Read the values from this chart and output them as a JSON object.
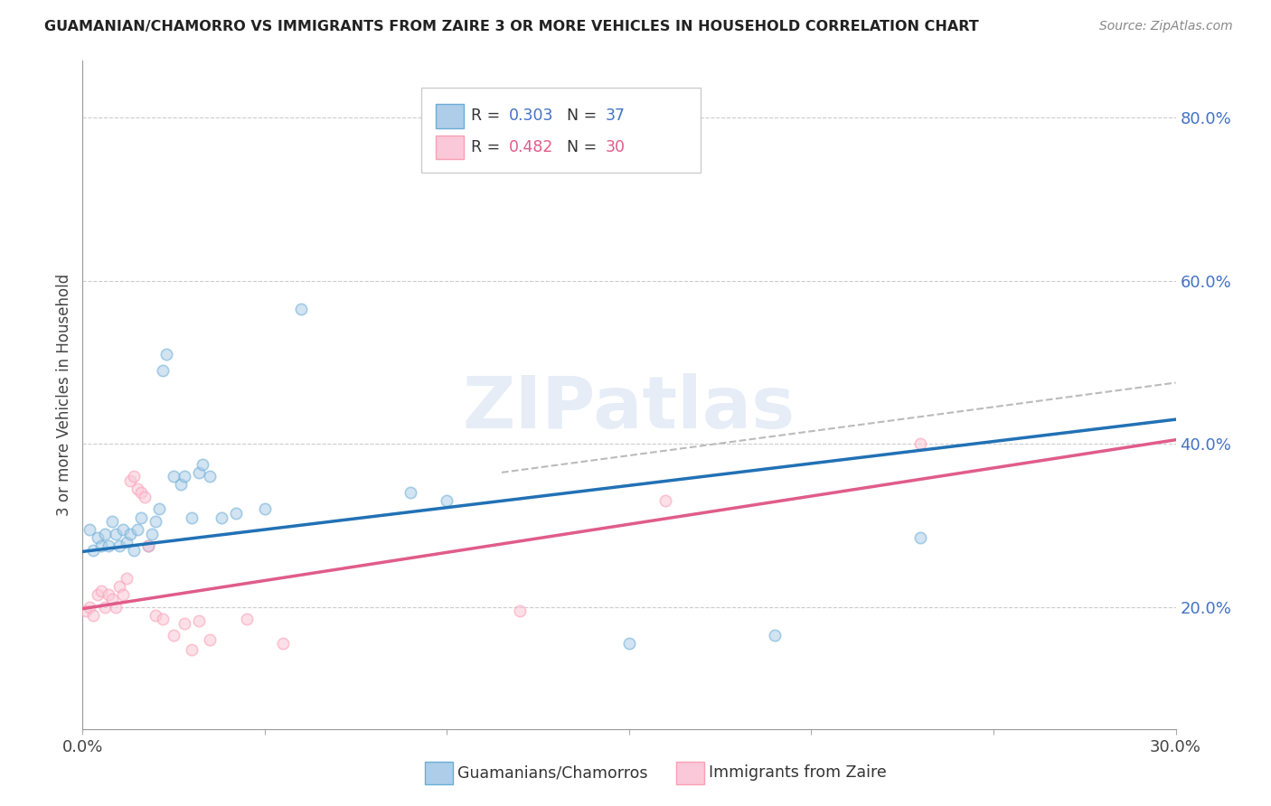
{
  "title": "GUAMANIAN/CHAMORRO VS IMMIGRANTS FROM ZAIRE 3 OR MORE VEHICLES IN HOUSEHOLD CORRELATION CHART",
  "source": "Source: ZipAtlas.com",
  "ylabel": "3 or more Vehicles in Household",
  "xlim": [
    0.0,
    0.3
  ],
  "ylim": [
    0.05,
    0.87
  ],
  "xticks": [
    0.0,
    0.05,
    0.1,
    0.15,
    0.2,
    0.25,
    0.3
  ],
  "xticklabels": [
    "0.0%",
    "",
    "",
    "",
    "",
    "",
    "30.0%"
  ],
  "yticks_right": [
    0.2,
    0.4,
    0.6,
    0.8
  ],
  "ytick_right_labels": [
    "20.0%",
    "40.0%",
    "60.0%",
    "80.0%"
  ],
  "blue_face_color": "#aecde8",
  "blue_edge_color": "#6baed6",
  "pink_face_color": "#fac8d8",
  "pink_edge_color": "#fa9fb5",
  "blue_line_color": "#2171b5",
  "pink_line_color": "#e05c8a",
  "legend_R1": "R = 0.303",
  "legend_N1": "N = 37",
  "legend_R2": "R = 0.482",
  "legend_N2": "N = 30",
  "legend_label1": "Guamanians/Chamorros",
  "legend_label2": "Immigrants from Zaire",
  "watermark": "ZIPatlas",
  "blue_points_x": [
    0.002,
    0.003,
    0.004,
    0.005,
    0.006,
    0.007,
    0.008,
    0.009,
    0.01,
    0.011,
    0.012,
    0.013,
    0.014,
    0.015,
    0.016,
    0.018,
    0.019,
    0.02,
    0.021,
    0.022,
    0.023,
    0.025,
    0.027,
    0.028,
    0.03,
    0.032,
    0.033,
    0.035,
    0.038,
    0.042,
    0.05,
    0.06,
    0.09,
    0.1,
    0.15,
    0.19,
    0.23
  ],
  "blue_points_y": [
    0.295,
    0.27,
    0.285,
    0.275,
    0.29,
    0.275,
    0.305,
    0.29,
    0.275,
    0.295,
    0.28,
    0.29,
    0.27,
    0.295,
    0.31,
    0.275,
    0.29,
    0.305,
    0.32,
    0.49,
    0.51,
    0.36,
    0.35,
    0.36,
    0.31,
    0.365,
    0.375,
    0.36,
    0.31,
    0.315,
    0.32,
    0.565,
    0.34,
    0.33,
    0.155,
    0.165,
    0.285
  ],
  "pink_points_x": [
    0.001,
    0.002,
    0.003,
    0.004,
    0.005,
    0.006,
    0.007,
    0.008,
    0.009,
    0.01,
    0.011,
    0.012,
    0.013,
    0.014,
    0.015,
    0.016,
    0.017,
    0.018,
    0.02,
    0.022,
    0.025,
    0.028,
    0.03,
    0.032,
    0.035,
    0.045,
    0.055,
    0.12,
    0.16,
    0.23
  ],
  "pink_points_y": [
    0.195,
    0.2,
    0.19,
    0.215,
    0.22,
    0.2,
    0.215,
    0.21,
    0.2,
    0.225,
    0.215,
    0.235,
    0.355,
    0.36,
    0.345,
    0.34,
    0.335,
    0.275,
    0.19,
    0.185,
    0.165,
    0.18,
    0.148,
    0.183,
    0.16,
    0.185,
    0.155,
    0.195,
    0.33,
    0.4
  ],
  "blue_regline_x": [
    0.0,
    0.3
  ],
  "blue_regline_y": [
    0.268,
    0.43
  ],
  "pink_regline_x": [
    0.0,
    0.3
  ],
  "pink_regline_y": [
    0.198,
    0.405
  ],
  "dash_regline_x": [
    0.115,
    0.3
  ],
  "dash_regline_y": [
    0.365,
    0.475
  ],
  "background_color": "#ffffff",
  "grid_color": "#cccccc",
  "marker_size": 80,
  "marker_alpha": 0.55
}
